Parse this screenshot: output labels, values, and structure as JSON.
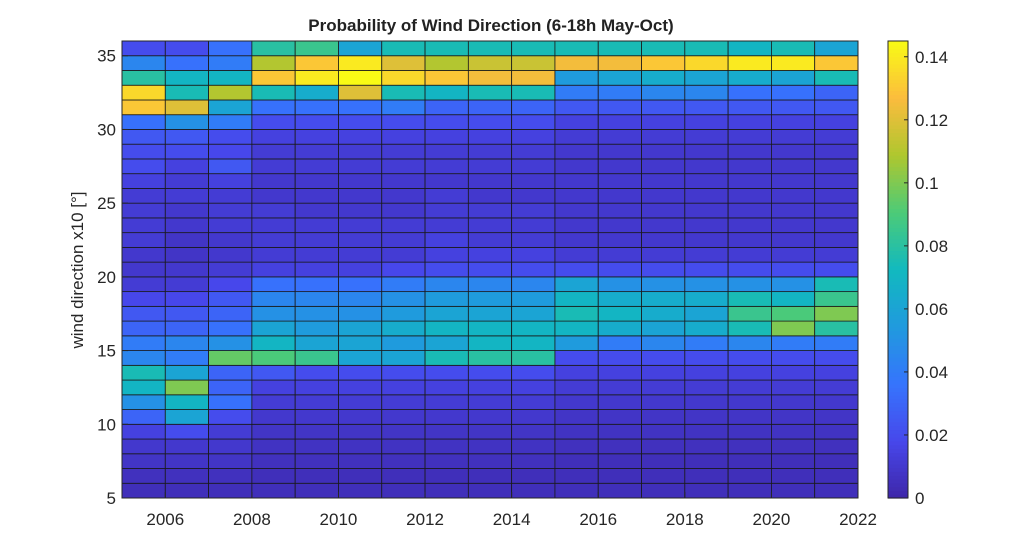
{
  "chart_data": {
    "type": "heatmap",
    "title": "Probability of Wind Direction (6-18h May-Oct)",
    "xlabel": "",
    "ylabel": "wind direction x10 [°]",
    "x_range": [
      2005,
      2022
    ],
    "y_range": [
      5,
      36
    ],
    "x_ticks": [
      2006,
      2008,
      2010,
      2012,
      2014,
      2016,
      2018,
      2020,
      2022
    ],
    "y_ticks": [
      5,
      10,
      15,
      20,
      25,
      30,
      35
    ],
    "colorbar": {
      "range": [
        0,
        0.145
      ],
      "ticks": [
        0,
        0.02,
        0.04,
        0.06,
        0.08,
        0.1,
        0.12,
        0.14
      ],
      "tick_labels": [
        "0",
        "0.02",
        "0.04",
        "0.06",
        "0.08",
        "0.1",
        "0.12",
        "0.14"
      ],
      "colormap": "parula"
    },
    "grid": false,
    "columns": [
      2005,
      2006,
      2007,
      2008,
      2009,
      2010,
      2011,
      2012,
      2013,
      2014,
      2015,
      2016,
      2017,
      2018,
      2019,
      2020,
      2021
    ],
    "rows": [
      5,
      6,
      7,
      8,
      9,
      10,
      11,
      12,
      13,
      14,
      15,
      16,
      17,
      18,
      19,
      20,
      21,
      22,
      23,
      24,
      25,
      26,
      27,
      28,
      29,
      30,
      31,
      32,
      33,
      34,
      35
    ],
    "values": [
      [
        0.005,
        0.005,
        0.005,
        0.005,
        0.005,
        0.005,
        0.005,
        0.005,
        0.005,
        0.005,
        0.005,
        0.005,
        0.005,
        0.005,
        0.005,
        0.005,
        0.005
      ],
      [
        0.006,
        0.006,
        0.006,
        0.005,
        0.005,
        0.005,
        0.005,
        0.005,
        0.005,
        0.005,
        0.005,
        0.005,
        0.005,
        0.005,
        0.005,
        0.005,
        0.005
      ],
      [
        0.008,
        0.008,
        0.008,
        0.006,
        0.006,
        0.006,
        0.006,
        0.006,
        0.006,
        0.006,
        0.005,
        0.005,
        0.005,
        0.005,
        0.005,
        0.005,
        0.005
      ],
      [
        0.01,
        0.01,
        0.01,
        0.007,
        0.007,
        0.007,
        0.007,
        0.007,
        0.007,
        0.007,
        0.006,
        0.006,
        0.006,
        0.006,
        0.006,
        0.006,
        0.006
      ],
      [
        0.015,
        0.02,
        0.012,
        0.008,
        0.008,
        0.008,
        0.008,
        0.008,
        0.008,
        0.008,
        0.007,
        0.007,
        0.007,
        0.007,
        0.007,
        0.007,
        0.007
      ],
      [
        0.03,
        0.06,
        0.02,
        0.01,
        0.01,
        0.01,
        0.01,
        0.01,
        0.01,
        0.01,
        0.008,
        0.008,
        0.008,
        0.008,
        0.008,
        0.008,
        0.008
      ],
      [
        0.05,
        0.07,
        0.035,
        0.012,
        0.012,
        0.012,
        0.012,
        0.012,
        0.012,
        0.012,
        0.01,
        0.01,
        0.01,
        0.01,
        0.01,
        0.01,
        0.01
      ],
      [
        0.07,
        0.1,
        0.03,
        0.015,
        0.015,
        0.015,
        0.015,
        0.015,
        0.015,
        0.015,
        0.012,
        0.012,
        0.012,
        0.012,
        0.012,
        0.012,
        0.012
      ],
      [
        0.075,
        0.06,
        0.03,
        0.025,
        0.02,
        0.02,
        0.02,
        0.02,
        0.02,
        0.02,
        0.015,
        0.015,
        0.015,
        0.015,
        0.015,
        0.015,
        0.015
      ],
      [
        0.045,
        0.04,
        0.095,
        0.09,
        0.085,
        0.06,
        0.06,
        0.075,
        0.08,
        0.08,
        0.02,
        0.02,
        0.02,
        0.02,
        0.02,
        0.02,
        0.02
      ],
      [
        0.04,
        0.045,
        0.05,
        0.07,
        0.06,
        0.06,
        0.055,
        0.06,
        0.07,
        0.07,
        0.055,
        0.04,
        0.045,
        0.04,
        0.045,
        0.04,
        0.04
      ],
      [
        0.03,
        0.03,
        0.035,
        0.06,
        0.055,
        0.06,
        0.065,
        0.07,
        0.07,
        0.07,
        0.07,
        0.065,
        0.06,
        0.065,
        0.075,
        0.1,
        0.08
      ],
      [
        0.025,
        0.025,
        0.03,
        0.05,
        0.05,
        0.05,
        0.055,
        0.06,
        0.06,
        0.06,
        0.075,
        0.07,
        0.065,
        0.06,
        0.085,
        0.09,
        0.1
      ],
      [
        0.018,
        0.018,
        0.025,
        0.045,
        0.045,
        0.045,
        0.05,
        0.055,
        0.055,
        0.055,
        0.07,
        0.065,
        0.065,
        0.065,
        0.075,
        0.07,
        0.085
      ],
      [
        0.012,
        0.012,
        0.018,
        0.035,
        0.035,
        0.035,
        0.04,
        0.045,
        0.045,
        0.045,
        0.06,
        0.05,
        0.05,
        0.05,
        0.05,
        0.05,
        0.075
      ],
      [
        0.01,
        0.01,
        0.012,
        0.015,
        0.015,
        0.015,
        0.018,
        0.02,
        0.02,
        0.02,
        0.02,
        0.02,
        0.02,
        0.02,
        0.02,
        0.02,
        0.02
      ],
      [
        0.01,
        0.008,
        0.01,
        0.012,
        0.012,
        0.012,
        0.012,
        0.015,
        0.015,
        0.015,
        0.012,
        0.012,
        0.012,
        0.012,
        0.012,
        0.012,
        0.012
      ],
      [
        0.012,
        0.008,
        0.01,
        0.012,
        0.012,
        0.012,
        0.012,
        0.015,
        0.012,
        0.012,
        0.01,
        0.01,
        0.01,
        0.01,
        0.01,
        0.01,
        0.01
      ],
      [
        0.012,
        0.01,
        0.012,
        0.012,
        0.012,
        0.012,
        0.012,
        0.012,
        0.012,
        0.012,
        0.01,
        0.01,
        0.01,
        0.01,
        0.01,
        0.01,
        0.01
      ],
      [
        0.012,
        0.01,
        0.012,
        0.012,
        0.01,
        0.01,
        0.01,
        0.012,
        0.012,
        0.012,
        0.01,
        0.01,
        0.01,
        0.01,
        0.01,
        0.01,
        0.01
      ],
      [
        0.012,
        0.012,
        0.012,
        0.01,
        0.01,
        0.01,
        0.01,
        0.012,
        0.01,
        0.01,
        0.01,
        0.01,
        0.01,
        0.01,
        0.01,
        0.01,
        0.01
      ],
      [
        0.015,
        0.012,
        0.015,
        0.01,
        0.01,
        0.01,
        0.01,
        0.01,
        0.01,
        0.01,
        0.01,
        0.01,
        0.01,
        0.01,
        0.01,
        0.01,
        0.01
      ],
      [
        0.02,
        0.015,
        0.025,
        0.012,
        0.012,
        0.012,
        0.012,
        0.012,
        0.012,
        0.012,
        0.01,
        0.01,
        0.01,
        0.01,
        0.01,
        0.01,
        0.01
      ],
      [
        0.02,
        0.02,
        0.018,
        0.012,
        0.012,
        0.012,
        0.012,
        0.012,
        0.012,
        0.012,
        0.01,
        0.01,
        0.01,
        0.01,
        0.01,
        0.01,
        0.01
      ],
      [
        0.025,
        0.025,
        0.02,
        0.015,
        0.015,
        0.015,
        0.015,
        0.015,
        0.015,
        0.015,
        0.012,
        0.012,
        0.012,
        0.012,
        0.012,
        0.012,
        0.012
      ],
      [
        0.035,
        0.05,
        0.04,
        0.02,
        0.02,
        0.02,
        0.02,
        0.02,
        0.02,
        0.02,
        0.015,
        0.015,
        0.015,
        0.015,
        0.015,
        0.015,
        0.015
      ],
      [
        0.13,
        0.12,
        0.06,
        0.035,
        0.035,
        0.035,
        0.04,
        0.03,
        0.03,
        0.03,
        0.025,
        0.025,
        0.025,
        0.025,
        0.025,
        0.025,
        0.025
      ],
      [
        0.135,
        0.075,
        0.11,
        0.075,
        0.065,
        0.12,
        0.075,
        0.07,
        0.075,
        0.075,
        0.04,
        0.04,
        0.045,
        0.045,
        0.035,
        0.035,
        0.03
      ],
      [
        0.08,
        0.07,
        0.07,
        0.13,
        0.14,
        0.145,
        0.135,
        0.13,
        0.125,
        0.125,
        0.055,
        0.06,
        0.065,
        0.06,
        0.065,
        0.06,
        0.075
      ],
      [
        0.045,
        0.035,
        0.04,
        0.11,
        0.13,
        0.14,
        0.12,
        0.11,
        0.115,
        0.115,
        0.125,
        0.125,
        0.13,
        0.135,
        0.14,
        0.14,
        0.13
      ],
      [
        0.02,
        0.02,
        0.035,
        0.08,
        0.085,
        0.06,
        0.075,
        0.075,
        0.075,
        0.075,
        0.075,
        0.075,
        0.075,
        0.075,
        0.07,
        0.075,
        0.06
      ]
    ]
  }
}
